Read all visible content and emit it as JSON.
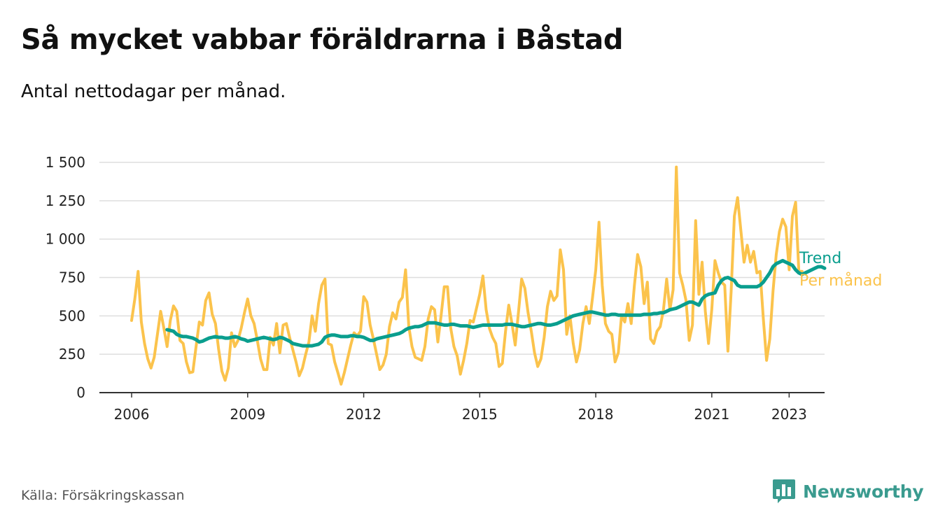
{
  "title": "Så mycket vabbar föräldrarna i Båstad",
  "subtitle": "Antal nettodagar per månad.",
  "source": "Källa: Försäkringskassan",
  "brand": {
    "name": "Newsworthy",
    "icon": "bar-chart-logo-icon",
    "color": "#3a9b8f"
  },
  "chart_data": {
    "type": "line",
    "title": "Så mycket vabbar föräldrarna i Båstad",
    "subtitle": "Antal nettodagar per månad.",
    "xlabel": "",
    "ylabel": "",
    "xlim": [
      "2005-03",
      "2023-12"
    ],
    "ylim": [
      0,
      1500
    ],
    "yticks": [
      0,
      250,
      500,
      750,
      1000,
      1250,
      1500
    ],
    "ytick_labels": [
      "0",
      "250",
      "500",
      "750",
      "1 000",
      "1 250",
      "1 500"
    ],
    "xticks": [
      "2006-01",
      "2009-01",
      "2012-01",
      "2015-01",
      "2018-01",
      "2021-01",
      "2023-01"
    ],
    "xtick_labels": [
      "2006",
      "2009",
      "2012",
      "2015",
      "2018",
      "2021",
      "2023"
    ],
    "grid": true,
    "legend": "direct labels at line ends (right)",
    "series": [
      {
        "name": "Per månad",
        "color": "#fbc34c",
        "start": "2006-01",
        "values": [
          470,
          610,
          790,
          460,
          320,
          220,
          160,
          230,
          380,
          530,
          420,
          300,
          470,
          565,
          530,
          340,
          320,
          200,
          130,
          135,
          300,
          460,
          440,
          600,
          650,
          510,
          450,
          280,
          140,
          80,
          160,
          390,
          300,
          340,
          420,
          520,
          610,
          500,
          450,
          340,
          220,
          150,
          150,
          360,
          310,
          450,
          260,
          440,
          450,
          360,
          280,
          200,
          110,
          160,
          250,
          330,
          500,
          400,
          580,
          700,
          740,
          320,
          310,
          200,
          130,
          55,
          130,
          220,
          310,
          390,
          370,
          400,
          625,
          590,
          440,
          350,
          250,
          150,
          180,
          250,
          430,
          520,
          480,
          590,
          620,
          800,
          430,
          300,
          230,
          220,
          210,
          300,
          480,
          560,
          540,
          330,
          500,
          690,
          690,
          420,
          300,
          240,
          120,
          210,
          320,
          470,
          460,
          550,
          640,
          760,
          540,
          420,
          360,
          320,
          170,
          190,
          400,
          570,
          450,
          310,
          520,
          740,
          680,
          520,
          400,
          260,
          170,
          220,
          360,
          560,
          660,
          600,
          630,
          930,
          800,
          380,
          500,
          320,
          200,
          280,
          450,
          560,
          450,
          620,
          800,
          1110,
          700,
          450,
          400,
          380,
          200,
          260,
          500,
          460,
          580,
          450,
          700,
          900,
          820,
          580,
          720,
          350,
          320,
          400,
          430,
          540,
          740,
          540,
          670,
          1470,
          780,
          700,
          600,
          340,
          440,
          1120,
          640,
          850,
          530,
          320,
          540,
          860,
          780,
          720,
          700,
          270,
          660,
          1150,
          1270,
          1060,
          850,
          960,
          850,
          920,
          780,
          790,
          480,
          210,
          350,
          660,
          900,
          1050,
          1130,
          1080,
          800,
          1150,
          1240,
          790,
          790
        ]
      },
      {
        "name": "Trend",
        "color": "#0a9e8e",
        "start": "2006-12",
        "values": [
          410,
          405,
          400,
          380,
          370,
          365,
          365,
          360,
          355,
          345,
          330,
          335,
          345,
          355,
          360,
          365,
          360,
          360,
          355,
          355,
          360,
          365,
          360,
          350,
          345,
          335,
          340,
          345,
          350,
          355,
          360,
          355,
          350,
          345,
          350,
          360,
          355,
          345,
          335,
          320,
          315,
          310,
          305,
          305,
          305,
          305,
          310,
          315,
          330,
          360,
          370,
          375,
          375,
          370,
          365,
          365,
          365,
          370,
          370,
          365,
          365,
          360,
          350,
          340,
          340,
          350,
          355,
          360,
          365,
          370,
          375,
          380,
          385,
          395,
          410,
          420,
          425,
          430,
          430,
          435,
          445,
          455,
          455,
          455,
          450,
          445,
          440,
          440,
          445,
          445,
          440,
          435,
          435,
          435,
          430,
          425,
          430,
          435,
          440,
          440,
          440,
          440,
          440,
          440,
          440,
          445,
          445,
          445,
          440,
          435,
          430,
          430,
          435,
          440,
          445,
          450,
          450,
          445,
          440,
          440,
          445,
          450,
          460,
          470,
          480,
          490,
          500,
          505,
          510,
          515,
          520,
          525,
          525,
          520,
          515,
          510,
          505,
          505,
          510,
          510,
          505,
          505,
          505,
          505,
          505,
          505,
          505,
          505,
          510,
          510,
          510,
          515,
          515,
          520,
          520,
          530,
          540,
          545,
          550,
          560,
          570,
          580,
          590,
          590,
          580,
          570,
          610,
          630,
          640,
          645,
          650,
          700,
          730,
          745,
          750,
          740,
          730,
          700,
          690,
          690,
          690,
          690,
          690,
          690,
          700,
          720,
          750,
          780,
          820,
          840,
          850,
          860,
          850,
          840,
          830,
          800,
          780,
          770,
          780,
          790,
          800,
          810,
          820,
          820,
          810
        ]
      }
    ]
  }
}
